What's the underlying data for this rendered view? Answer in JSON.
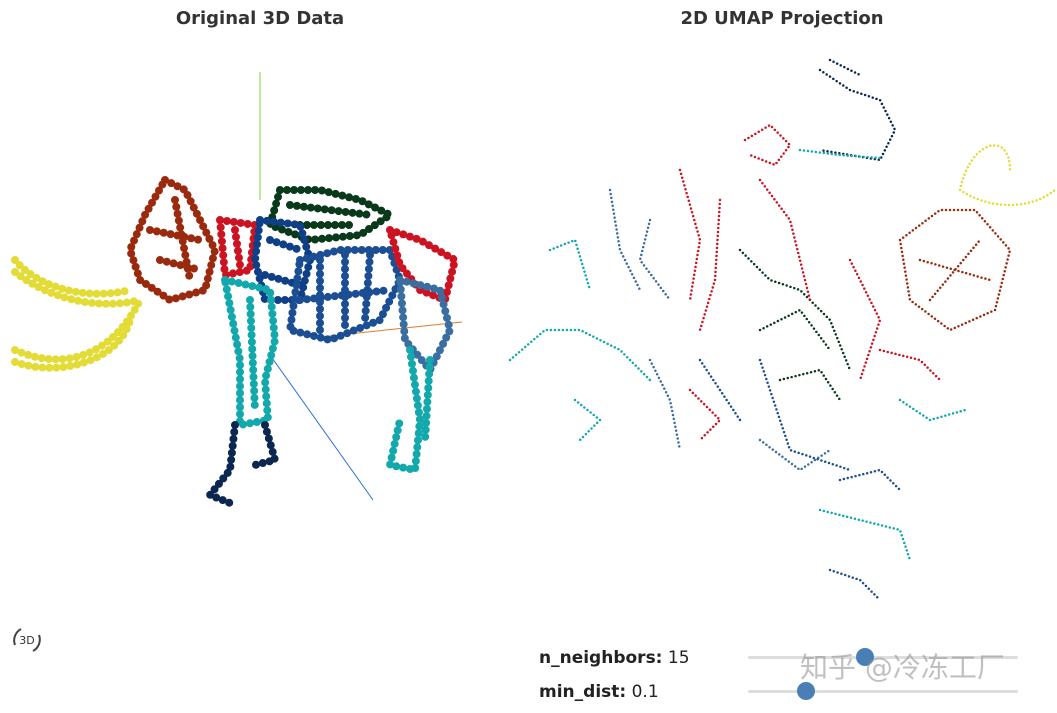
{
  "left_panel": {
    "title": "Original 3D Data",
    "badge": "3D"
  },
  "right_panel": {
    "title": "2D UMAP Projection"
  },
  "controls": [
    {
      "label": "n_neighbors:",
      "value": 15
    },
    {
      "label": "min_dist:",
      "value": 0.1
    }
  ],
  "watermark": "知乎 @冷冻工厂"
}
